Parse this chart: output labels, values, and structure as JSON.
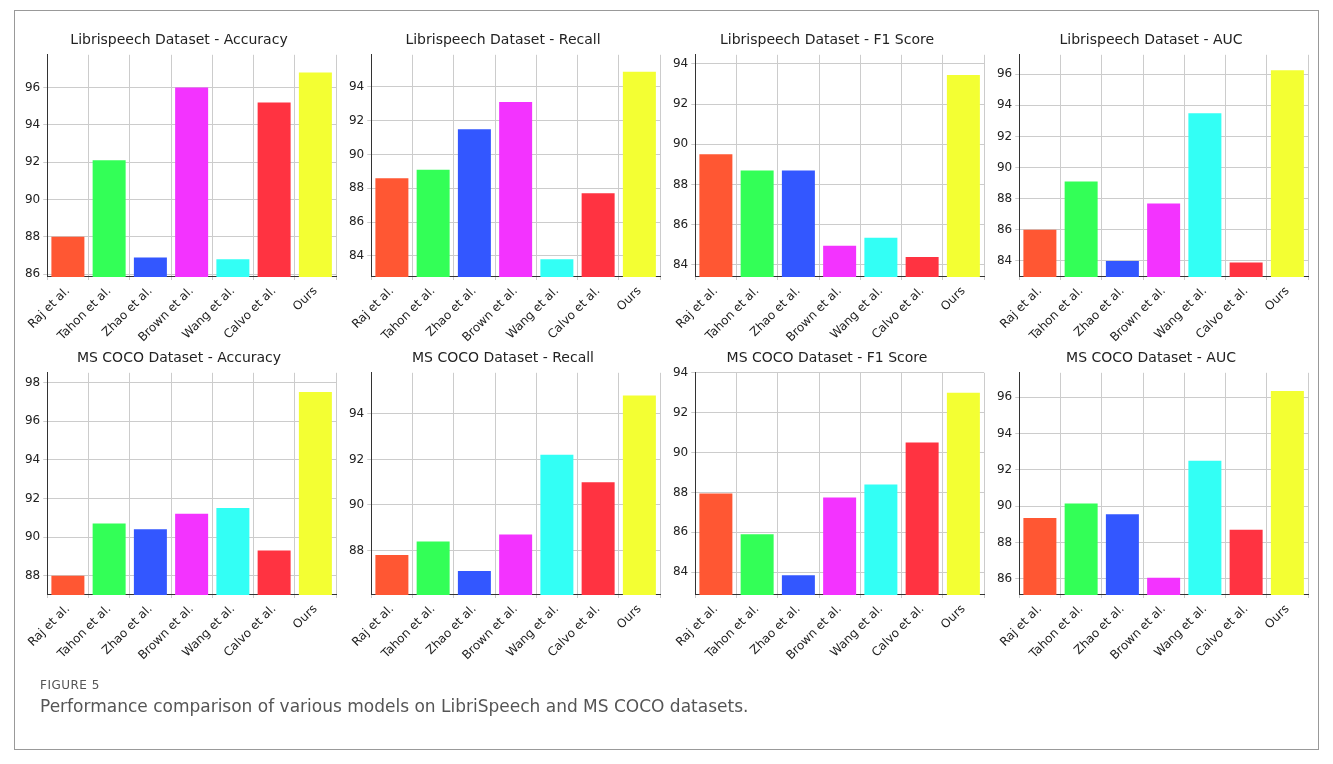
{
  "chart_data": [
    {
      "type": "bar",
      "title": "Librispeech Dataset - Accuracy",
      "categories": [
        "Raj et al.",
        "Tahon et al.",
        "Zhao et al.",
        "Brown et al.",
        "Wang et al.",
        "Calvo et al.",
        "Ours"
      ],
      "values": [
        88.0,
        92.1,
        86.9,
        96.0,
        86.8,
        95.2,
        96.8
      ],
      "colors": [
        "#ff5733",
        "#33ff57",
        "#3357ff",
        "#f333ff",
        "#33fff5",
        "#ff3341",
        "#f3ff33"
      ],
      "ylim": [
        85.85,
        97.75
      ],
      "yticks": [
        86,
        88,
        90,
        92,
        94,
        96
      ],
      "grid": true
    },
    {
      "type": "bar",
      "title": "Librispeech Dataset - Recall",
      "categories": [
        "Raj et al.",
        "Tahon et al.",
        "Zhao et al.",
        "Brown et al.",
        "Wang et al.",
        "Calvo et al.",
        "Ours"
      ],
      "values": [
        88.6,
        89.1,
        91.5,
        93.1,
        83.8,
        87.7,
        94.9
      ],
      "colors": [
        "#ff5733",
        "#33ff57",
        "#3357ff",
        "#f333ff",
        "#33fff5",
        "#ff3341",
        "#f3ff33"
      ],
      "ylim": [
        82.75,
        95.9
      ],
      "yticks": [
        84,
        86,
        88,
        90,
        92,
        94
      ],
      "grid": true
    },
    {
      "type": "bar",
      "title": "Librispeech Dataset - F1 Score",
      "categories": [
        "Raj et al.",
        "Tahon et al.",
        "Zhao et al.",
        "Brown et al.",
        "Wang et al.",
        "Calvo et al.",
        "Ours"
      ],
      "values": [
        89.5,
        88.7,
        88.7,
        84.95,
        85.35,
        84.4,
        93.45
      ],
      "colors": [
        "#ff5733",
        "#33ff57",
        "#3357ff",
        "#f333ff",
        "#33fff5",
        "#ff3341",
        "#f3ff33"
      ],
      "ylim": [
        83.4,
        94.45
      ],
      "yticks": [
        84,
        86,
        88,
        90,
        92,
        94
      ],
      "grid": true
    },
    {
      "type": "bar",
      "title": "Librispeech Dataset - AUC",
      "categories": [
        "Raj et al.",
        "Tahon et al.",
        "Zhao et al.",
        "Brown et al.",
        "Wang et al.",
        "Calvo et al.",
        "Ours"
      ],
      "values": [
        86.0,
        89.1,
        84.0,
        87.7,
        93.5,
        83.9,
        96.25
      ],
      "colors": [
        "#ff5733",
        "#33ff57",
        "#3357ff",
        "#f333ff",
        "#33fff5",
        "#ff3341",
        "#f3ff33"
      ],
      "ylim": [
        82.97,
        97.25
      ],
      "yticks": [
        84,
        86,
        88,
        90,
        92,
        94,
        96
      ],
      "grid": true
    },
    {
      "type": "bar",
      "title": "MS COCO Dataset - Accuracy",
      "categories": [
        "Raj et al.",
        "Tahon et al.",
        "Zhao et al.",
        "Brown et al.",
        "Wang et al.",
        "Calvo et al.",
        "Ours"
      ],
      "values": [
        88.0,
        90.7,
        90.4,
        91.2,
        91.5,
        89.3,
        97.5
      ],
      "colors": [
        "#ff5733",
        "#33ff57",
        "#3357ff",
        "#f333ff",
        "#33fff5",
        "#ff3341",
        "#f3ff33"
      ],
      "ylim": [
        87.0,
        98.5
      ],
      "yticks": [
        88,
        90,
        92,
        94,
        96,
        98
      ],
      "grid": true
    },
    {
      "type": "bar",
      "title": "MS COCO Dataset - Recall",
      "categories": [
        "Raj et al.",
        "Tahon et al.",
        "Zhao et al.",
        "Brown et al.",
        "Wang et al.",
        "Calvo et al.",
        "Ours"
      ],
      "values": [
        87.8,
        88.4,
        87.1,
        88.7,
        92.2,
        91.0,
        94.8
      ],
      "colors": [
        "#ff5733",
        "#33ff57",
        "#3357ff",
        "#f333ff",
        "#33fff5",
        "#ff3341",
        "#f3ff33"
      ],
      "ylim": [
        86.05,
        95.8
      ],
      "yticks": [
        88,
        90,
        92,
        94
      ],
      "grid": true
    },
    {
      "type": "bar",
      "title": "MS COCO Dataset - F1 Score",
      "categories": [
        "Raj et al.",
        "Tahon et al.",
        "Zhao et al.",
        "Brown et al.",
        "Wang et al.",
        "Calvo et al.",
        "Ours"
      ],
      "values": [
        87.95,
        85.9,
        83.85,
        87.75,
        88.4,
        90.5,
        93.0
      ],
      "colors": [
        "#ff5733",
        "#33ff57",
        "#3357ff",
        "#f333ff",
        "#33fff5",
        "#ff3341",
        "#f3ff33"
      ],
      "ylim": [
        82.86,
        94.0
      ],
      "yticks": [
        84,
        86,
        88,
        90,
        92,
        94
      ],
      "grid": true
    },
    {
      "type": "bar",
      "title": "MS COCO Dataset - AUC",
      "categories": [
        "Raj et al.",
        "Tahon et al.",
        "Zhao et al.",
        "Brown et al.",
        "Wang et al.",
        "Calvo et al.",
        "Ours"
      ],
      "values": [
        89.35,
        90.15,
        89.55,
        86.05,
        92.5,
        88.7,
        96.35
      ],
      "colors": [
        "#ff5733",
        "#33ff57",
        "#3357ff",
        "#f333ff",
        "#33fff5",
        "#ff3341",
        "#f3ff33"
      ],
      "ylim": [
        85.1,
        97.35
      ],
      "yticks": [
        86,
        88,
        90,
        92,
        94,
        96
      ],
      "grid": true,
      "annotations": [
        "FIGURE 5",
        "Performance comparison of various models on LibriSpeech and MS COCO datasets."
      ]
    }
  ]
}
